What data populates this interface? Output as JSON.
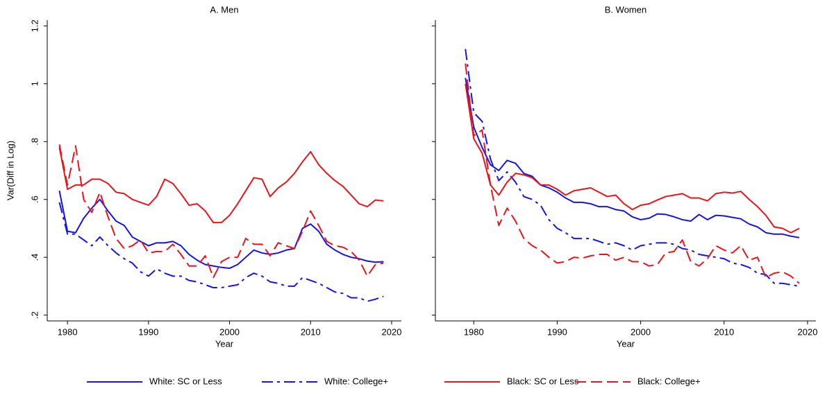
{
  "chart_data": [
    {
      "type": "line",
      "title": "A. Men",
      "xlabel": "Year",
      "ylabel": "Var(Diff in Log)",
      "x": [
        1979,
        1980,
        1981,
        1982,
        1983,
        1984,
        1985,
        1986,
        1987,
        1988,
        1989,
        1990,
        1991,
        1992,
        1993,
        1994,
        1995,
        1996,
        1997,
        1998,
        1999,
        2000,
        2001,
        2002,
        2003,
        2004,
        2005,
        2006,
        2007,
        2008,
        2009,
        2010,
        2011,
        2012,
        2013,
        2014,
        2015,
        2016,
        2017,
        2018,
        2019
      ],
      "xlim": [
        1977.5,
        2021.2
      ],
      "xticks": [
        1980,
        1990,
        2000,
        2010,
        2020
      ],
      "ylim": [
        0.18,
        1.22
      ],
      "yticks": [
        {
          "value": 0.2,
          "label": ".2"
        },
        {
          "value": 0.4,
          "label": ".4"
        },
        {
          "value": 0.6,
          "label": ".6"
        },
        {
          "value": 0.8,
          "label": ".8"
        },
        1,
        1.2
      ],
      "series": [
        {
          "name": "White: SC or Less",
          "color": "#1414e6",
          "dash": "solid",
          "values": [
            0.63,
            0.49,
            0.485,
            0.535,
            0.57,
            0.6,
            0.56,
            0.525,
            0.51,
            0.47,
            0.455,
            0.44,
            0.45,
            0.45,
            0.455,
            0.44,
            0.41,
            0.39,
            0.375,
            0.37,
            0.365,
            0.362,
            0.375,
            0.4,
            0.425,
            0.415,
            0.41,
            0.415,
            0.425,
            0.43,
            0.5,
            0.515,
            0.49,
            0.445,
            0.425,
            0.41,
            0.4,
            0.395,
            0.387,
            0.383,
            0.385
          ]
        },
        {
          "name": "White: College+",
          "color": "#1414e6",
          "dash": "long-dash-dot",
          "values": [
            0.59,
            0.48,
            0.48,
            0.46,
            0.44,
            0.47,
            0.44,
            0.415,
            0.395,
            0.38,
            0.35,
            0.335,
            0.36,
            0.345,
            0.335,
            0.335,
            0.32,
            0.315,
            0.305,
            0.295,
            0.295,
            0.3,
            0.305,
            0.33,
            0.345,
            0.335,
            0.315,
            0.31,
            0.3,
            0.3,
            0.33,
            0.32,
            0.31,
            0.295,
            0.28,
            0.275,
            0.26,
            0.26,
            0.248,
            0.255,
            0.265
          ]
        },
        {
          "name": "Black: SC or Less",
          "color": "#e8141a",
          "dash": "solid",
          "values": [
            0.78,
            0.635,
            0.65,
            0.65,
            0.67,
            0.67,
            0.655,
            0.625,
            0.62,
            0.6,
            0.59,
            0.58,
            0.61,
            0.67,
            0.655,
            0.62,
            0.58,
            0.585,
            0.56,
            0.52,
            0.52,
            0.545,
            0.585,
            0.63,
            0.675,
            0.67,
            0.61,
            0.64,
            0.66,
            0.69,
            0.73,
            0.765,
            0.72,
            0.69,
            0.665,
            0.645,
            0.615,
            0.585,
            0.575,
            0.598,
            0.595
          ]
        },
        {
          "name": "Black: College+",
          "color": "#e8141a",
          "dash": "long-dash",
          "values": [
            0.79,
            0.65,
            0.785,
            0.6,
            0.555,
            0.625,
            0.54,
            0.465,
            0.43,
            0.44,
            0.46,
            0.415,
            0.42,
            0.42,
            0.445,
            0.41,
            0.37,
            0.37,
            0.405,
            0.33,
            0.385,
            0.4,
            0.4,
            0.465,
            0.445,
            0.445,
            0.405,
            0.45,
            0.44,
            0.43,
            0.49,
            0.56,
            0.51,
            0.455,
            0.44,
            0.435,
            0.42,
            0.39,
            0.335,
            0.375,
            0.38
          ]
        }
      ]
    },
    {
      "type": "line",
      "title": "B. Women",
      "xlabel": "Year",
      "x": [
        1979,
        1980,
        1981,
        1982,
        1983,
        1984,
        1985,
        1986,
        1987,
        1988,
        1989,
        1990,
        1991,
        1992,
        1993,
        1994,
        1995,
        1996,
        1997,
        1998,
        1999,
        2000,
        2001,
        2002,
        2003,
        2004,
        2005,
        2006,
        2007,
        2008,
        2009,
        2010,
        2011,
        2012,
        2013,
        2014,
        2015,
        2016,
        2017,
        2018,
        2019
      ],
      "xlim": [
        1975.4,
        2021.0
      ],
      "xticks": [
        1980,
        1990,
        2000,
        2010,
        2020
      ],
      "ylim": [
        0.18,
        1.22
      ],
      "yticks": [
        0.2,
        0.4,
        0.6,
        0.8,
        1,
        1.2
      ],
      "series": [
        {
          "color": "#1414e6",
          "dash": "solid",
          "values": [
            1.02,
            0.85,
            0.78,
            0.72,
            0.7,
            0.735,
            0.725,
            0.69,
            0.68,
            0.65,
            0.64,
            0.625,
            0.605,
            0.59,
            0.59,
            0.585,
            0.575,
            0.575,
            0.565,
            0.56,
            0.54,
            0.53,
            0.535,
            0.55,
            0.548,
            0.54,
            0.53,
            0.525,
            0.548,
            0.53,
            0.545,
            0.543,
            0.538,
            0.533,
            0.515,
            0.505,
            0.485,
            0.48,
            0.48,
            0.473,
            0.468
          ]
        },
        {
          "color": "#1414e6",
          "dash": "long-dash-dot",
          "values": [
            1.12,
            0.9,
            0.87,
            0.74,
            0.665,
            0.695,
            0.66,
            0.61,
            0.6,
            0.58,
            0.53,
            0.5,
            0.485,
            0.465,
            0.465,
            0.465,
            0.455,
            0.445,
            0.45,
            0.44,
            0.425,
            0.44,
            0.445,
            0.45,
            0.45,
            0.445,
            0.43,
            0.425,
            0.41,
            0.405,
            0.4,
            0.395,
            0.38,
            0.375,
            0.365,
            0.345,
            0.34,
            0.31,
            0.31,
            0.305,
            0.3
          ]
        },
        {
          "color": "#e8141a",
          "dash": "solid",
          "values": [
            1.0,
            0.81,
            0.76,
            0.65,
            0.615,
            0.66,
            0.69,
            0.685,
            0.675,
            0.65,
            0.65,
            0.635,
            0.615,
            0.63,
            0.635,
            0.64,
            0.625,
            0.61,
            0.615,
            0.585,
            0.565,
            0.58,
            0.585,
            0.598,
            0.61,
            0.615,
            0.62,
            0.605,
            0.605,
            0.595,
            0.62,
            0.625,
            0.622,
            0.628,
            0.6,
            0.575,
            0.545,
            0.505,
            0.5,
            0.485,
            0.5
          ]
        },
        {
          "color": "#e8141a",
          "dash": "long-dash",
          "values": [
            1.07,
            0.82,
            0.84,
            0.65,
            0.51,
            0.57,
            0.525,
            0.465,
            0.44,
            0.425,
            0.4,
            0.38,
            0.385,
            0.4,
            0.397,
            0.405,
            0.41,
            0.41,
            0.39,
            0.4,
            0.385,
            0.385,
            0.37,
            0.375,
            0.415,
            0.42,
            0.46,
            0.385,
            0.37,
            0.395,
            0.44,
            0.425,
            0.415,
            0.44,
            0.39,
            0.4,
            0.33,
            0.345,
            0.35,
            0.335,
            0.31
          ]
        }
      ]
    }
  ]
}
